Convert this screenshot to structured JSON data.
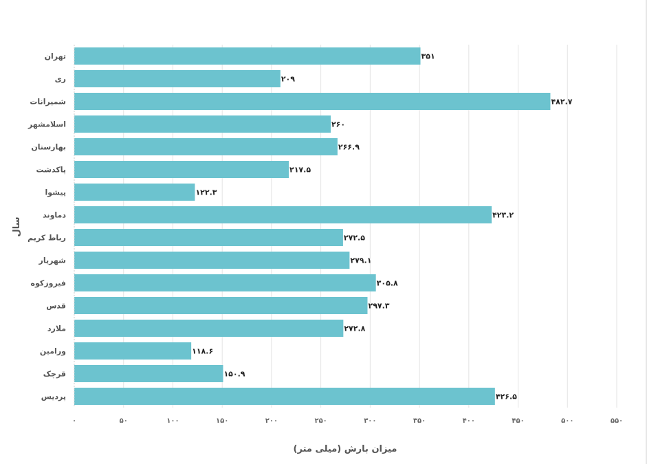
{
  "chart_data": {
    "type": "bar",
    "orientation": "horizontal",
    "categories": [
      "تهران",
      "ری",
      "شمیرانات",
      "اسلامشهر",
      "بهارستان",
      "پاکدشت",
      "پیشوا",
      "دماوند",
      "رباط کریم",
      "شهریار",
      "فیروزکوه",
      "قدس",
      "ملارد",
      "ورامین",
      "قرچک",
      "پردیس"
    ],
    "values": [
      351,
      209,
      482.7,
      260,
      266.9,
      217.5,
      122.3,
      423.2,
      272.5,
      279.1,
      305.8,
      297.3,
      272.8,
      118.6,
      150.9,
      426.5
    ],
    "value_labels": [
      "۳۵۱",
      "۲۰۹",
      "۴۸۲.۷",
      "۲۶۰",
      "۲۶۶.۹",
      "۲۱۷.۵",
      "۱۲۲.۳",
      "۴۲۳.۲",
      "۲۷۲.۵",
      "۲۷۹.۱",
      "۳۰۵.۸",
      "۲۹۷.۳",
      "۲۷۲.۸",
      "۱۱۸.۶",
      "۱۵۰.۹",
      "۴۲۶.۵"
    ],
    "x_ticks": [
      0,
      50,
      100,
      150,
      200,
      250,
      300,
      350,
      400,
      450,
      500,
      550
    ],
    "x_tick_labels": [
      "۰",
      "۵۰",
      "۱۰۰",
      "۱۵۰",
      "۲۰۰",
      "۲۵۰",
      "۳۰۰",
      "۳۵۰",
      "۴۰۰",
      "۴۵۰",
      "۵۰۰",
      "۵۵۰"
    ],
    "xlim": [
      0,
      550
    ],
    "xlabel": "میزان بارش (میلی متر)",
    "ylabel": "سال",
    "title": "",
    "grid": true,
    "colors": {
      "bar": "#6cc3cf",
      "grid": "#e3e3e3",
      "axis": "#cccccc"
    }
  }
}
